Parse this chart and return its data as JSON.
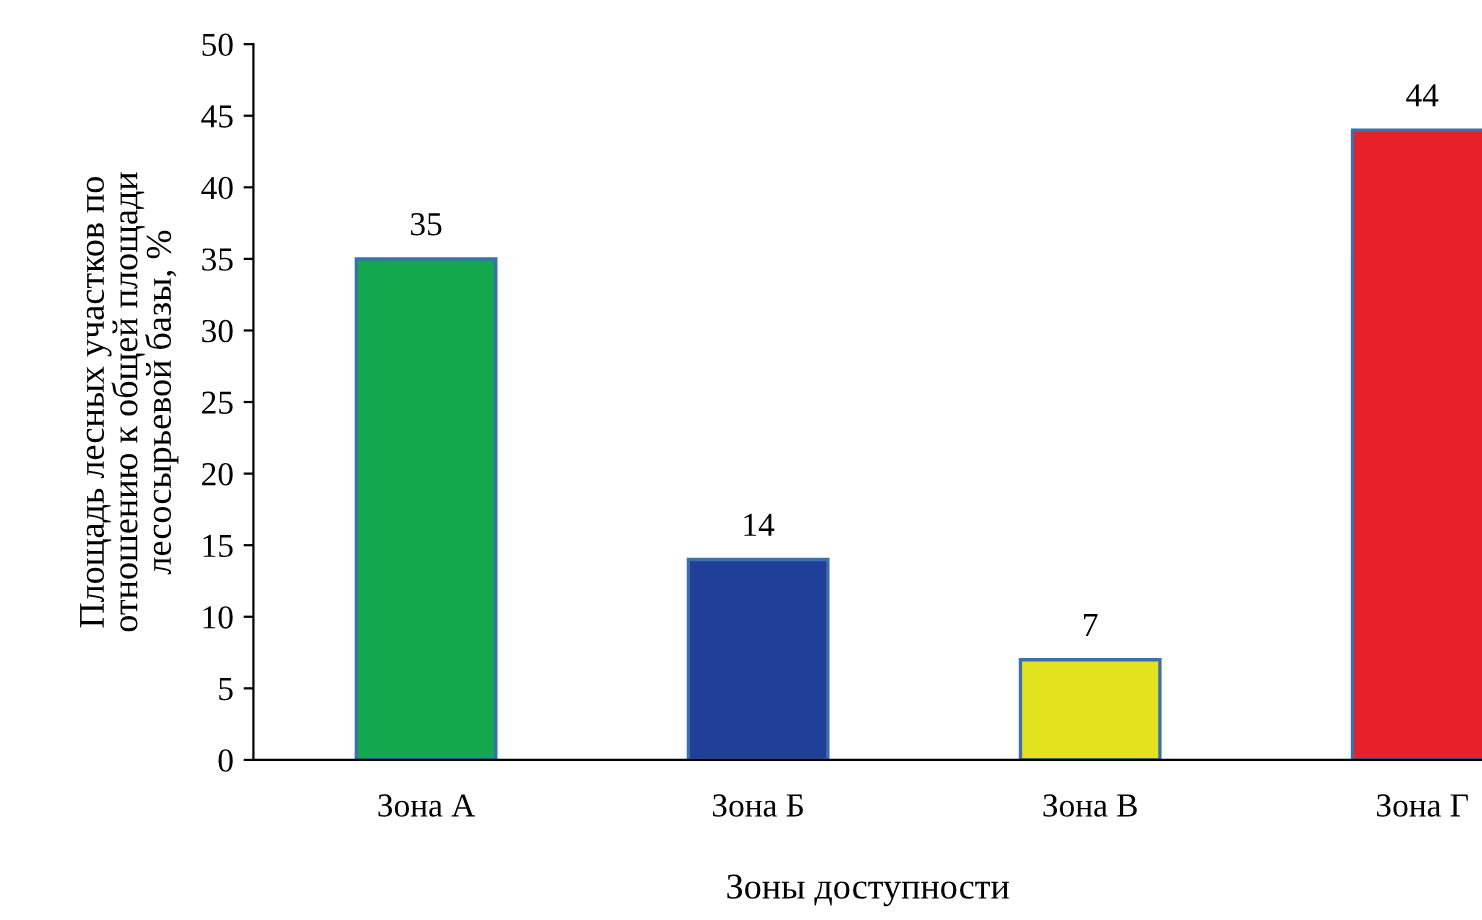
{
  "chart_data": {
    "type": "bar",
    "xlabel": "Зоны доступности",
    "ylabel": "Площадь лесных участков по\nотношению к общей площади\nлесосырьевой базы, %",
    "categories": [
      "Зона А",
      "Зона Б",
      "Зона В",
      "Зона Г"
    ],
    "values": [
      35,
      14,
      7,
      44
    ],
    "colors": [
      "#13a84e",
      "#1f3f99",
      "#e2e21e",
      "#e8202a"
    ],
    "ylim": [
      0,
      50
    ],
    "yticks": [
      0,
      5,
      10,
      15,
      20,
      25,
      30,
      35,
      40,
      45,
      50
    ],
    "data_labels": true,
    "grid": false,
    "legend": false
  }
}
